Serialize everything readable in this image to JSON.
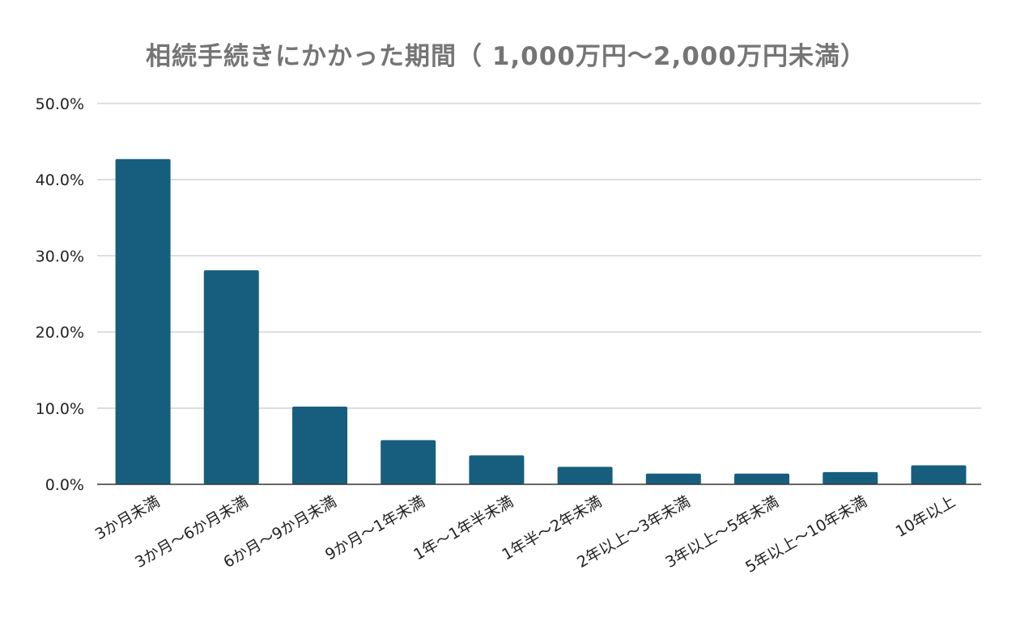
{
  "chart_data": {
    "type": "bar",
    "title": "相続手続きにかかった期間（ 1,000万円～2,000万円未満）",
    "xlabel": "",
    "ylabel": "",
    "ylim": [
      0,
      50
    ],
    "y_ticks": [
      "0.0%",
      "10.0%",
      "20.0%",
      "30.0%",
      "40.0%",
      "50.0%"
    ],
    "grid": true,
    "legend": "none",
    "bar_color": "#175e7e",
    "categories": [
      "3か月未満",
      "3か月～6か月未満",
      "6か月～9か月未満",
      "9か月～1年未満",
      "1年～1年半未満",
      "1年半～2年未満",
      "2年以上～3年未満",
      "3年以上～5年未満",
      "5年以上～10年未満",
      "10年以上"
    ],
    "series": [
      {
        "values": [
          42.7,
          28.1,
          10.2,
          5.8,
          3.8,
          2.3,
          1.4,
          1.4,
          1.6,
          2.5
        ]
      }
    ]
  }
}
